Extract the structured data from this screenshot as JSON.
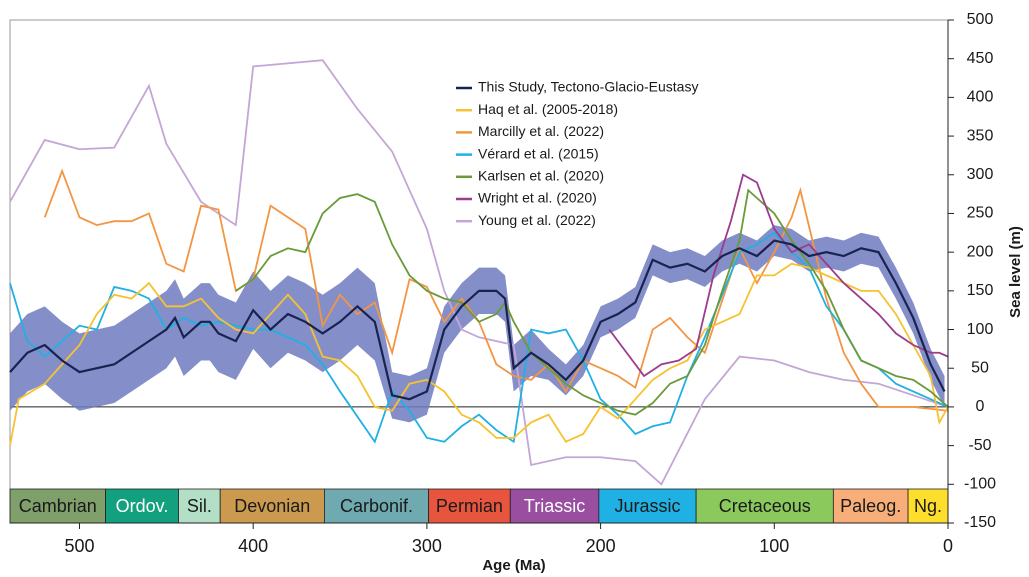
{
  "chart_data": {
    "type": "line",
    "x_label": "Age (Ma)",
    "y_label": "Sea level (m)",
    "xlim": [
      540,
      0
    ],
    "xticks": [
      500,
      400,
      300,
      200,
      100,
      0
    ],
    "ylim": [
      -150,
      500
    ],
    "yticks": [
      -150,
      -100,
      -50,
      0,
      50,
      100,
      150,
      200,
      250,
      300,
      350,
      400,
      450,
      500
    ],
    "band": {
      "color": "#6f7bc0",
      "x": [
        540,
        530,
        520,
        510,
        500,
        490,
        480,
        470,
        460,
        450,
        445,
        440,
        435,
        430,
        425,
        420,
        410,
        400,
        390,
        380,
        370,
        360,
        350,
        340,
        330,
        320,
        310,
        300,
        290,
        280,
        270,
        260,
        255,
        250,
        240,
        230,
        220,
        210,
        200,
        190,
        180,
        170,
        160,
        150,
        140,
        130,
        120,
        110,
        100,
        90,
        80,
        70,
        60,
        50,
        40,
        30,
        20,
        10,
        2
      ],
      "lower": [
        -5,
        20,
        30,
        10,
        -5,
        0,
        5,
        20,
        35,
        50,
        65,
        40,
        50,
        60,
        60,
        45,
        35,
        75,
        50,
        70,
        60,
        45,
        60,
        80,
        60,
        -15,
        -20,
        -10,
        70,
        100,
        120,
        120,
        110,
        20,
        40,
        35,
        15,
        40,
        90,
        100,
        115,
        170,
        160,
        165,
        155,
        175,
        185,
        175,
        195,
        190,
        175,
        180,
        175,
        185,
        180,
        140,
        95,
        35,
        0
      ],
      "upper": [
        95,
        120,
        130,
        110,
        95,
        100,
        105,
        120,
        135,
        150,
        165,
        140,
        150,
        160,
        160,
        145,
        135,
        175,
        150,
        170,
        160,
        145,
        160,
        180,
        160,
        45,
        40,
        50,
        130,
        160,
        180,
        180,
        170,
        80,
        100,
        75,
        55,
        80,
        130,
        140,
        155,
        210,
        200,
        205,
        195,
        215,
        225,
        215,
        235,
        230,
        215,
        220,
        215,
        225,
        220,
        180,
        135,
        75,
        40
      ]
    },
    "series": [
      {
        "name": "Young et al. (2022)",
        "color": "#c3a6d6",
        "x": [
          540,
          520,
          500,
          480,
          460,
          450,
          430,
          410,
          400,
          360,
          340,
          320,
          300,
          290,
          280,
          270,
          250,
          240,
          220,
          200,
          180,
          165,
          140,
          120,
          100,
          80,
          60,
          40,
          20,
          0
        ],
        "values": [
          265,
          345,
          333,
          335,
          415,
          340,
          265,
          235,
          440,
          448,
          385,
          330,
          230,
          150,
          100,
          90,
          80,
          -75,
          -65,
          -65,
          -70,
          -100,
          10,
          65,
          60,
          45,
          35,
          30,
          15,
          0
        ]
      },
      {
        "name": "Marcilly et al. (2022)",
        "color": "#f39543",
        "x": [
          520,
          510,
          500,
          490,
          480,
          470,
          460,
          450,
          440,
          430,
          420,
          410,
          400,
          390,
          370,
          360,
          350,
          340,
          330,
          320,
          310,
          300,
          290,
          280,
          270,
          260,
          250,
          240,
          230,
          220,
          210,
          200,
          190,
          180,
          170,
          160,
          150,
          140,
          120,
          110,
          100,
          90,
          85,
          70,
          60,
          50,
          40,
          30,
          20,
          0
        ],
        "values": [
          245,
          305,
          245,
          235,
          240,
          240,
          250,
          185,
          175,
          260,
          255,
          150,
          165,
          260,
          230,
          105,
          145,
          120,
          135,
          70,
          165,
          155,
          110,
          140,
          110,
          55,
          40,
          35,
          55,
          20,
          60,
          50,
          40,
          25,
          100,
          115,
          90,
          70,
          205,
          160,
          200,
          245,
          280,
          140,
          70,
          30,
          0,
          0,
          0,
          -5
        ]
      },
      {
        "name": "Vérard et al. (2015)",
        "color": "#1fb1e3",
        "x": [
          540,
          530,
          520,
          510,
          500,
          490,
          480,
          470,
          460,
          450,
          440,
          430,
          420,
          410,
          400,
          390,
          370,
          360,
          350,
          330,
          320,
          310,
          300,
          290,
          280,
          270,
          260,
          250,
          240,
          230,
          220,
          210,
          200,
          190,
          180,
          170,
          160,
          150,
          140,
          120,
          110,
          100,
          90,
          80,
          70,
          60,
          50,
          40,
          30,
          10,
          0
        ],
        "values": [
          160,
          85,
          65,
          85,
          105,
          100,
          155,
          150,
          140,
          100,
          115,
          105,
          110,
          105,
          100,
          100,
          80,
          55,
          20,
          -45,
          20,
          -5,
          -40,
          -45,
          -25,
          -10,
          -30,
          -45,
          100,
          95,
          100,
          60,
          10,
          -10,
          -35,
          -25,
          -20,
          40,
          90,
          200,
          210,
          225,
          200,
          180,
          130,
          100,
          60,
          50,
          30,
          10,
          0
        ]
      },
      {
        "name": "Haq et al. (2005-2018)",
        "color": "#f6c230",
        "x": [
          540,
          535,
          520,
          500,
          490,
          480,
          470,
          460,
          450,
          440,
          430,
          420,
          410,
          400,
          390,
          380,
          370,
          360,
          350,
          340,
          330,
          320,
          310,
          300,
          290,
          280,
          270,
          260,
          250,
          240,
          230,
          220,
          210,
          200,
          190,
          180,
          170,
          160,
          150,
          140,
          130,
          120,
          110,
          100,
          90,
          80,
          70,
          60,
          50,
          40,
          30,
          20,
          10,
          5,
          0
        ],
        "values": [
          -50,
          10,
          30,
          80,
          120,
          145,
          140,
          160,
          130,
          130,
          140,
          115,
          100,
          95,
          120,
          145,
          120,
          65,
          60,
          40,
          0,
          -5,
          30,
          35,
          20,
          -10,
          -20,
          -40,
          -40,
          -20,
          -10,
          -45,
          -35,
          0,
          -15,
          10,
          35,
          50,
          60,
          100,
          110,
          120,
          170,
          170,
          185,
          180,
          170,
          160,
          150,
          150,
          120,
          80,
          40,
          -20,
          0
        ]
      },
      {
        "name": "Karlsen et al. (2020)",
        "color": "#6a9a3a",
        "x": [
          410,
          400,
          390,
          380,
          370,
          360,
          350,
          340,
          330,
          320,
          310,
          300,
          290,
          280,
          270,
          260,
          255,
          250,
          240,
          230,
          220,
          210,
          200,
          190,
          180,
          170,
          160,
          150,
          140,
          130,
          120,
          115,
          110,
          100,
          90,
          80,
          70,
          60,
          50,
          40,
          30,
          20,
          10,
          0
        ],
        "values": [
          150,
          165,
          195,
          205,
          200,
          250,
          270,
          275,
          265,
          210,
          170,
          150,
          140,
          135,
          110,
          120,
          135,
          110,
          70,
          50,
          30,
          15,
          5,
          -5,
          -10,
          5,
          30,
          40,
          80,
          150,
          215,
          280,
          270,
          250,
          215,
          185,
          150,
          100,
          60,
          50,
          40,
          35,
          20,
          0
        ]
      },
      {
        "name": "Wright et al. (2020)",
        "color": "#9c3c8c",
        "x": [
          195,
          185,
          175,
          165,
          155,
          145,
          135,
          125,
          118,
          110,
          100,
          90,
          80,
          70,
          60,
          50,
          40,
          30,
          20,
          10,
          5,
          0
        ],
        "values": [
          100,
          70,
          40,
          55,
          60,
          75,
          170,
          240,
          300,
          290,
          230,
          200,
          210,
          185,
          160,
          140,
          120,
          95,
          80,
          70,
          70,
          65
        ]
      },
      {
        "name": "This Study, Tectono-Glacio-Eustasy",
        "color": "#1a2250",
        "x": [
          540,
          530,
          520,
          510,
          500,
          490,
          480,
          470,
          460,
          450,
          445,
          440,
          435,
          430,
          425,
          420,
          410,
          400,
          390,
          380,
          370,
          360,
          350,
          340,
          330,
          320,
          310,
          300,
          290,
          280,
          270,
          260,
          255,
          250,
          240,
          230,
          220,
          210,
          200,
          190,
          180,
          170,
          160,
          150,
          140,
          130,
          120,
          110,
          100,
          90,
          80,
          70,
          60,
          50,
          40,
          30,
          20,
          10,
          2
        ],
        "values": [
          45,
          70,
          80,
          60,
          45,
          50,
          55,
          70,
          85,
          100,
          115,
          90,
          100,
          110,
          110,
          95,
          85,
          125,
          100,
          120,
          110,
          95,
          110,
          130,
          110,
          15,
          10,
          20,
          100,
          130,
          150,
          150,
          140,
          50,
          70,
          55,
          35,
          60,
          110,
          120,
          135,
          190,
          180,
          185,
          175,
          195,
          205,
          195,
          215,
          210,
          195,
          200,
          195,
          205,
          200,
          160,
          115,
          55,
          20
        ]
      }
    ],
    "legend_order": [
      6,
      3,
      1,
      2,
      4,
      5,
      0
    ],
    "periods": [
      {
        "name": "Cambrian",
        "start": 540,
        "end": 485,
        "color": "#7fa06a",
        "text_color": "#1a1a1a"
      },
      {
        "name": "Ordov.",
        "start": 485,
        "end": 443,
        "color": "#13a07e",
        "text_color": "#ffffff"
      },
      {
        "name": "Sil.",
        "start": 443,
        "end": 419,
        "color": "#b4dfc7",
        "text_color": "#1a1a1a"
      },
      {
        "name": "Devonian",
        "start": 419,
        "end": 359,
        "color": "#cb9a4f",
        "text_color": "#1a1a1a"
      },
      {
        "name": "Carbonif.",
        "start": 359,
        "end": 299,
        "color": "#6eaab0",
        "text_color": "#1a1a1a"
      },
      {
        "name": "Permian",
        "start": 299,
        "end": 252,
        "color": "#e8553f",
        "text_color": "#1a1a1a"
      },
      {
        "name": "Triassic",
        "start": 252,
        "end": 201,
        "color": "#9a4ea0",
        "text_color": "#ffffff"
      },
      {
        "name": "Jurassic",
        "start": 201,
        "end": 145,
        "color": "#1fb1e3",
        "text_color": "#1a1a1a"
      },
      {
        "name": "Cretaceous",
        "start": 145,
        "end": 66,
        "color": "#8cc95d",
        "text_color": "#1a1a1a"
      },
      {
        "name": "Paleog.",
        "start": 66,
        "end": 23,
        "color": "#f8ae78",
        "text_color": "#1a1a1a"
      },
      {
        "name": "Ng.",
        "start": 23,
        "end": 0,
        "color": "#fdde2c",
        "text_color": "#1a1a1a"
      }
    ]
  }
}
